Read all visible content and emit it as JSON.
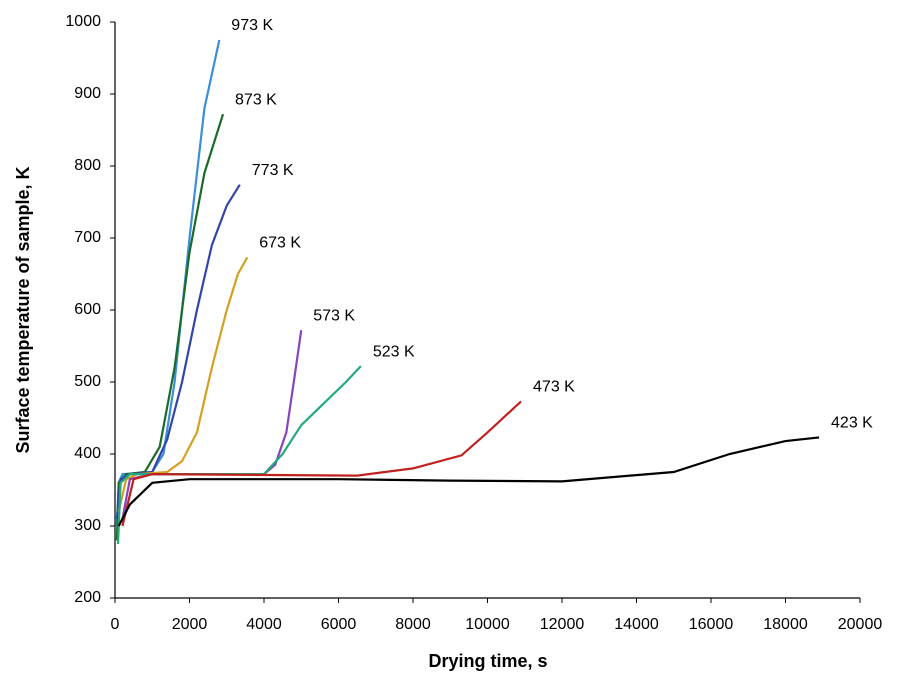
{
  "chart_data": {
    "type": "line",
    "xlabel": "Drying time, s",
    "ylabel": "Surface temperature of sample, K",
    "xlim": [
      0,
      20000
    ],
    "xticks": [
      0,
      2000,
      4000,
      6000,
      8000,
      10000,
      12000,
      14000,
      16000,
      18000,
      20000
    ],
    "ylim": [
      200,
      1000
    ],
    "yticks": [
      200,
      300,
      400,
      500,
      600,
      700,
      800,
      900,
      1000
    ],
    "grid": false,
    "series": [
      {
        "name": "973 K",
        "color": "#3a8fd8",
        "x": [
          50,
          100,
          200,
          1000,
          1300,
          1600,
          2000,
          2400,
          2800
        ],
        "values": [
          300,
          360,
          372,
          375,
          400,
          500,
          700,
          880,
          975
        ]
      },
      {
        "name": "873 K",
        "color": "#1a6b2a",
        "x": [
          50,
          100,
          300,
          800,
          1200,
          1600,
          2000,
          2400,
          2900
        ],
        "values": [
          280,
          360,
          372,
          375,
          410,
          520,
          680,
          790,
          872
        ]
      },
      {
        "name": "773 K",
        "color": "#3344aa",
        "x": [
          50,
          150,
          400,
          1000,
          1400,
          1800,
          2200,
          2600,
          3000,
          3350
        ],
        "values": [
          310,
          365,
          372,
          375,
          420,
          500,
          600,
          690,
          745,
          774
        ]
      },
      {
        "name": "673 K",
        "color": "#d4a020",
        "x": [
          100,
          300,
          600,
          1400,
          1800,
          2200,
          2600,
          3000,
          3300,
          3550
        ],
        "values": [
          320,
          365,
          372,
          375,
          390,
          430,
          520,
          600,
          650,
          673
        ]
      },
      {
        "name": "573 K",
        "color": "#8844bb",
        "x": [
          200,
          400,
          1000,
          4000,
          4300,
          4600,
          4800,
          5000
        ],
        "values": [
          310,
          365,
          372,
          372,
          385,
          430,
          500,
          572
        ]
      },
      {
        "name": "523 K",
        "color": "#22aa77",
        "x": [
          80,
          150,
          400,
          4000,
          4500,
          5000,
          5600,
          6200,
          6600
        ],
        "values": [
          275,
          360,
          372,
          372,
          400,
          440,
          470,
          500,
          522
        ]
      },
      {
        "name": "473 K",
        "color": "#c02020",
        "x": [
          200,
          500,
          1000,
          6500,
          8000,
          9300,
          10000,
          10900
        ],
        "values": [
          300,
          365,
          372,
          370,
          380,
          398,
          430,
          473
        ]
      },
      {
        "name": "423 K",
        "color": "#000000",
        "x": [
          100,
          400,
          1000,
          2000,
          4000,
          6000,
          9000,
          12000,
          15000,
          16500,
          18000,
          18900
        ],
        "values": [
          300,
          330,
          360,
          365,
          365,
          365,
          363,
          362,
          375,
          400,
          418,
          423
        ]
      }
    ]
  }
}
